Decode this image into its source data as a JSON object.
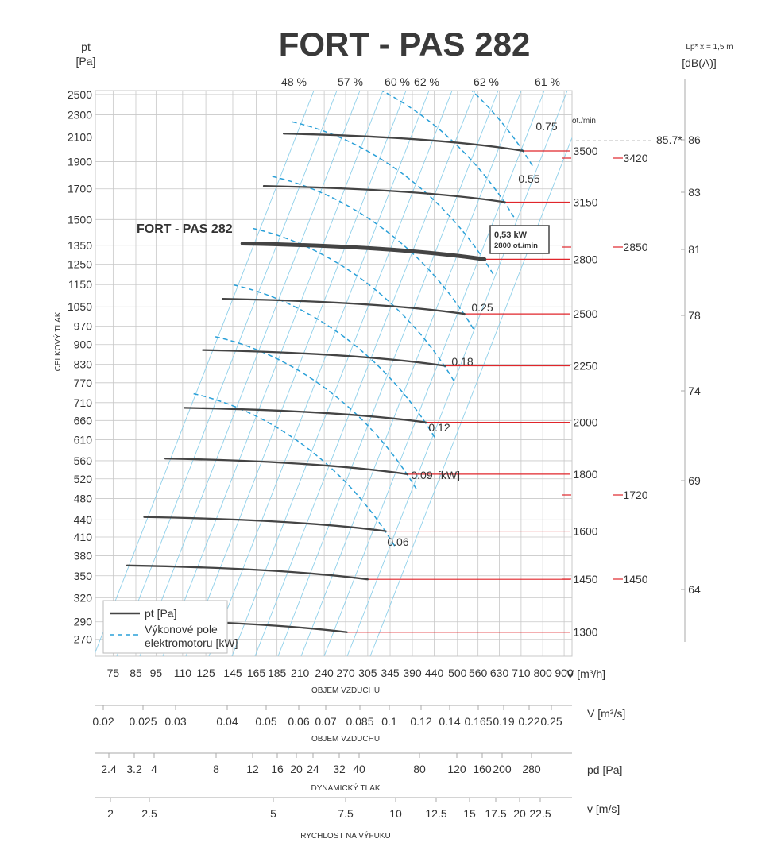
{
  "chart_data": {
    "type": "line",
    "title": "FORT - PAS 282",
    "curve_label": "FORT - PAS 282",
    "y_left": {
      "label_top": "pt",
      "label_unit": "[Pa]",
      "side_label": "CELKOVÝ TLAK",
      "ticks": [
        "2500",
        "2300",
        "2100",
        "1900",
        "1700",
        "1500",
        "1350",
        "1250",
        "1150",
        "1050",
        "970",
        "900",
        "830",
        "770",
        "710",
        "660",
        "610",
        "560",
        "520",
        "480",
        "440",
        "410",
        "380",
        "350",
        "320",
        "290",
        "270"
      ]
    },
    "x_main": {
      "ticks": [
        "75",
        "85",
        "95",
        "110",
        "125",
        "145",
        "165",
        "185",
        "210",
        "240",
        "270",
        "305",
        "345",
        "390",
        "440",
        "500",
        "560",
        "630",
        "710",
        "800",
        "900"
      ],
      "unit": "V [m³/h]",
      "label": "OBJEM VZDUCHU"
    },
    "scale_m3s": {
      "ticks": [
        "0.02",
        "0.025",
        "0.03",
        "0.04",
        "0.05",
        "0.06",
        "0.07",
        "0.085",
        "0.1",
        "0.12",
        "0.14",
        "0.165",
        "0.19",
        "0.22",
        "0.25"
      ],
      "unit": "V  [m³/s]",
      "label": "OBJEM VZDUCHU"
    },
    "scale_pd": {
      "ticks": [
        "2.4",
        "3.2",
        "4",
        "8",
        "12",
        "16",
        "20",
        "24",
        "32",
        "40",
        "80",
        "120",
        "160",
        "200",
        "280"
      ],
      "unit": "pd  [Pa]",
      "label": "DYNAMICKÝ TLAK"
    },
    "scale_v": {
      "ticks": [
        "2",
        "2.5",
        "5",
        "7.5",
        "10",
        "12.5",
        "15",
        "17.5",
        "20",
        "22.5"
      ],
      "unit": "v  [m/s]",
      "label": "RYCHLOST NA VÝFUKU"
    },
    "efficiency_labels": [
      "48 %",
      "57 %",
      "60 %",
      "62 %",
      "62 %",
      "61 %"
    ],
    "rpm_header": "ot./min",
    "rpm_labels": [
      "3500",
      "3150",
      "2800",
      "2500",
      "2250",
      "2000",
      "1800",
      "1600",
      "1450",
      "1300"
    ],
    "power_labels": [
      "0.75",
      "0.55",
      "0.25",
      "0.18",
      "0.12",
      "0.09",
      "0.06"
    ],
    "power_unit": "[kW]",
    "sound": {
      "header_line1": "Lp* x = 1,5 m",
      "header_line2": "[dB(A)]",
      "ticks": [
        "86",
        "83",
        "81",
        "78",
        "74",
        "69",
        "64"
      ],
      "marker": "85.7*"
    },
    "red_labels": [
      "3420",
      "2850",
      "1720",
      "1450"
    ],
    "operating_point": {
      "power": "0,53 kW",
      "speed": "2800 ot./min"
    },
    "legend": [
      {
        "label": "pt [Pa]",
        "color": "#444444",
        "style": "solid"
      },
      {
        "label_line1": "Výkonové pole",
        "label_line2": "elektromotoru [kW]",
        "color": "#2aa0d8",
        "style": "dashed"
      }
    ],
    "series": [
      {
        "rpm": 3500,
        "x": [
          192,
          720
        ],
        "y": [
          2130,
          1985
        ]
      },
      {
        "rpm": 3150,
        "x": [
          172,
          650
        ],
        "y": [
          1720,
          1610
        ]
      },
      {
        "rpm": 2800,
        "x": [
          153,
          580
        ],
        "y": [
          1360,
          1275
        ]
      },
      {
        "rpm": 2500,
        "x": [
          137,
          520
        ],
        "y": [
          1085,
          1020
        ]
      },
      {
        "rpm": 2250,
        "x": [
          123,
          467
        ],
        "y": [
          880,
          825
        ]
      },
      {
        "rpm": 2000,
        "x": [
          111,
          420
        ],
        "y": [
          695,
          655
        ]
      },
      {
        "rpm": 1800,
        "x": [
          100,
          380
        ],
        "y": [
          565,
          530
        ]
      },
      {
        "rpm": 1600,
        "x": [
          89,
          337
        ],
        "y": [
          445,
          420
        ]
      },
      {
        "rpm": 1450,
        "x": [
          81,
          305
        ],
        "y": [
          365,
          345
        ]
      },
      {
        "rpm": 1300,
        "x": [
          72,
          272
        ],
        "y": [
          293,
          278
        ]
      }
    ],
    "colors": {
      "curve": "#444444",
      "grid": "#c8c8c8",
      "efficiency": "#8fd0ea",
      "power": "#2aa0d8",
      "red": "#e0262b"
    }
  }
}
